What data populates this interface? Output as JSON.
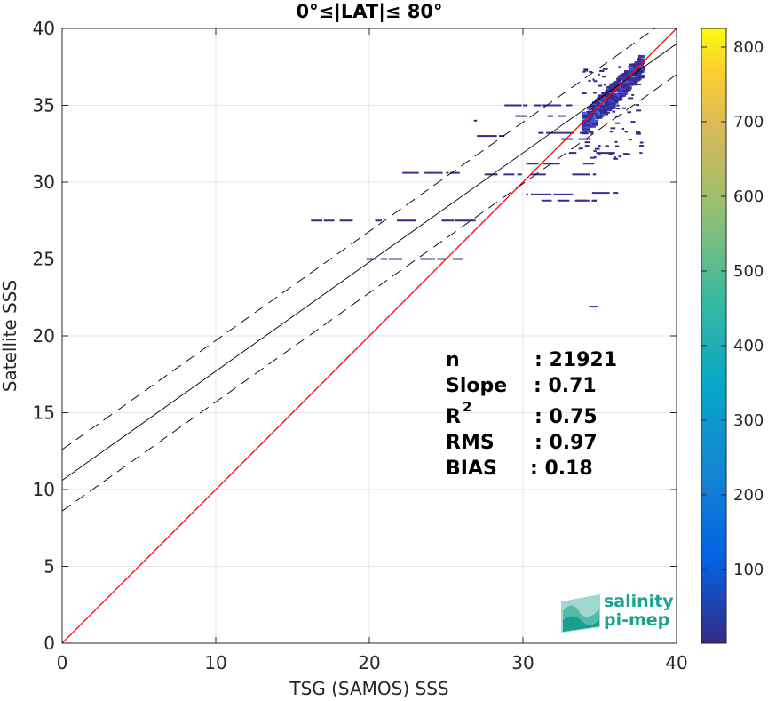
{
  "chart_data": {
    "type": "heatmap",
    "title": "0°≤|LAT|≤ 80°",
    "xlabel": "TSG (SAMOS) SSS",
    "ylabel": "Satellite SSS",
    "xlim": [
      0,
      40
    ],
    "ylim": [
      0,
      40
    ],
    "xticks": [
      "0",
      "10",
      "20",
      "30",
      "40"
    ],
    "yticks": [
      "0",
      "5",
      "10",
      "15",
      "20",
      "25",
      "30",
      "35",
      "40"
    ],
    "grid": true,
    "colorbar": {
      "range": [
        1,
        825
      ],
      "ticks": [
        "100",
        "200",
        "300",
        "400",
        "500",
        "600",
        "700",
        "800"
      ],
      "colormap": "parula"
    },
    "lines": [
      {
        "role": "one-to-one",
        "slope": 1.0,
        "intercept": 0.0,
        "color": "#ff0000",
        "style": "solid"
      },
      {
        "role": "regression",
        "slope": 0.71,
        "intercept": 10.6,
        "color": "#000000",
        "style": "solid"
      },
      {
        "role": "regression-plus-2-sigma",
        "slope": 0.71,
        "intercept": 12.6,
        "color": "#000000",
        "style": "dashed"
      },
      {
        "role": "regression-minus-2-sigma",
        "slope": 0.71,
        "intercept": 8.6,
        "color": "#000000",
        "style": "dashed"
      }
    ],
    "density_segments": [
      {
        "x0": 16.2,
        "x1": 27.8,
        "y": 27.5
      },
      {
        "x0": 19.8,
        "x1": 26.2,
        "y": 25.0
      },
      {
        "x0": 21.0,
        "x1": 27.2,
        "y": 30.6
      },
      {
        "x0": 27.5,
        "x1": 35.5,
        "y": 30.5
      },
      {
        "x0": 30.2,
        "x1": 35.2,
        "y": 29.2
      },
      {
        "x0": 31.2,
        "x1": 34.8,
        "y": 28.8
      },
      {
        "x0": 32.5,
        "x1": 35.8,
        "y": 32.8
      },
      {
        "x0": 30.2,
        "x1": 35.0,
        "y": 31.2
      },
      {
        "x0": 29.5,
        "x1": 34.5,
        "y": 34.3
      },
      {
        "x0": 31.0,
        "x1": 34.8,
        "y": 33.2
      },
      {
        "x0": 33.0,
        "x1": 36.2,
        "y": 31.9
      },
      {
        "x0": 28.8,
        "x1": 33.2,
        "y": 35.0
      },
      {
        "x0": 27.0,
        "x1": 28.8,
        "y": 33.0
      },
      {
        "x0": 34.5,
        "x1": 36.2,
        "y": 29.3
      },
      {
        "x0": 33.5,
        "x1": 34.8,
        "y": 28.8
      },
      {
        "x0": 34.3,
        "x1": 34.9,
        "y": 21.9
      },
      {
        "x0": 26.8,
        "x1": 27.3,
        "y": 34.0
      }
    ],
    "dense_cluster": {
      "x_range": [
        33.8,
        37.6
      ],
      "y_range": [
        33.8,
        37.6
      ],
      "peak_count": 825
    },
    "stats": [
      {
        "label": "n",
        "value": ": 21921"
      },
      {
        "label": "Slope",
        "value": ": 0.71"
      },
      {
        "label": "R",
        "superscript": "2",
        "value": ": 0.75"
      },
      {
        "label": "RMS",
        "value": ": 0.97"
      },
      {
        "label": "BIAS",
        "value": ": 0.18"
      }
    ]
  },
  "logo": {
    "line1": "salinity",
    "line2": "pi-mep"
  },
  "colors": {
    "one_to_one": "#ff0000",
    "regression": "#000000",
    "grid": "#e6e6e6",
    "logo": "#1aa393"
  }
}
